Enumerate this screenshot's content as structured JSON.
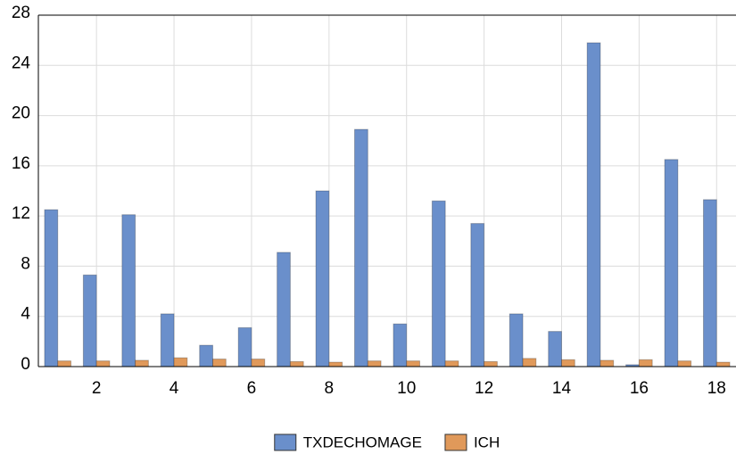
{
  "chart_data": {
    "type": "bar",
    "x": [
      1,
      2,
      3,
      4,
      5,
      6,
      7,
      8,
      9,
      10,
      11,
      12,
      13,
      14,
      15,
      16,
      17,
      18
    ],
    "series": [
      {
        "name": "TXDECHOMAGE",
        "color": "#6a8fcb",
        "values": [
          12.5,
          7.3,
          12.1,
          4.2,
          1.7,
          3.1,
          9.1,
          14.0,
          18.9,
          3.4,
          13.2,
          11.4,
          4.2,
          2.8,
          25.8,
          0.15,
          16.5,
          13.3
        ]
      },
      {
        "name": "ICH",
        "color": "#e0995a",
        "values": [
          0.45,
          0.45,
          0.5,
          0.7,
          0.6,
          0.6,
          0.4,
          0.35,
          0.45,
          0.45,
          0.45,
          0.4,
          0.65,
          0.55,
          0.5,
          0.55,
          0.45,
          0.35
        ]
      }
    ],
    "xlim": [
      0.5,
      18.5
    ],
    "xticks": [
      2,
      4,
      6,
      8,
      10,
      12,
      14,
      16,
      18
    ],
    "ylim": [
      0,
      28
    ],
    "yticks": [
      0,
      4,
      8,
      12,
      16,
      20,
      24,
      28
    ],
    "grid": true,
    "legend": "bottom"
  }
}
